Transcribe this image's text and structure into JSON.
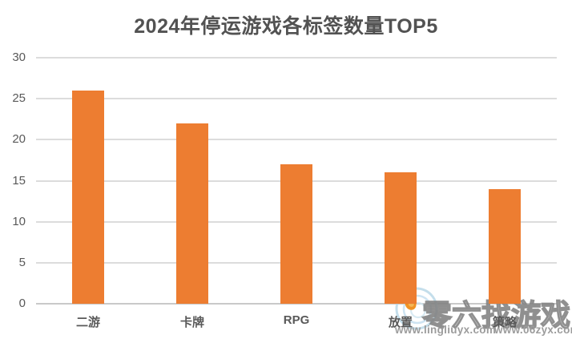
{
  "chart_data": {
    "type": "bar",
    "title": "2024年停运游戏各标签数量TOP5",
    "categories": [
      "二游",
      "卡牌",
      "RPG",
      "放置",
      "策略"
    ],
    "values": [
      26,
      22,
      17,
      16,
      14
    ],
    "xlabel": "",
    "ylabel": "",
    "ylim": [
      0,
      30
    ],
    "yticks": [
      0,
      5,
      10,
      15,
      20,
      25,
      30
    ],
    "grid": true,
    "legend": false,
    "bar_color": "#ED7D31",
    "grid_color": "#DCDCDC",
    "axis_label_color": "#595959",
    "title_color": "#525252"
  },
  "watermark": {
    "logo": "swirl-flame-logo",
    "brand_text": "零六找游戏",
    "url_left": "www.lingliuyx.com",
    "url_right": "www.06zyx.com"
  }
}
